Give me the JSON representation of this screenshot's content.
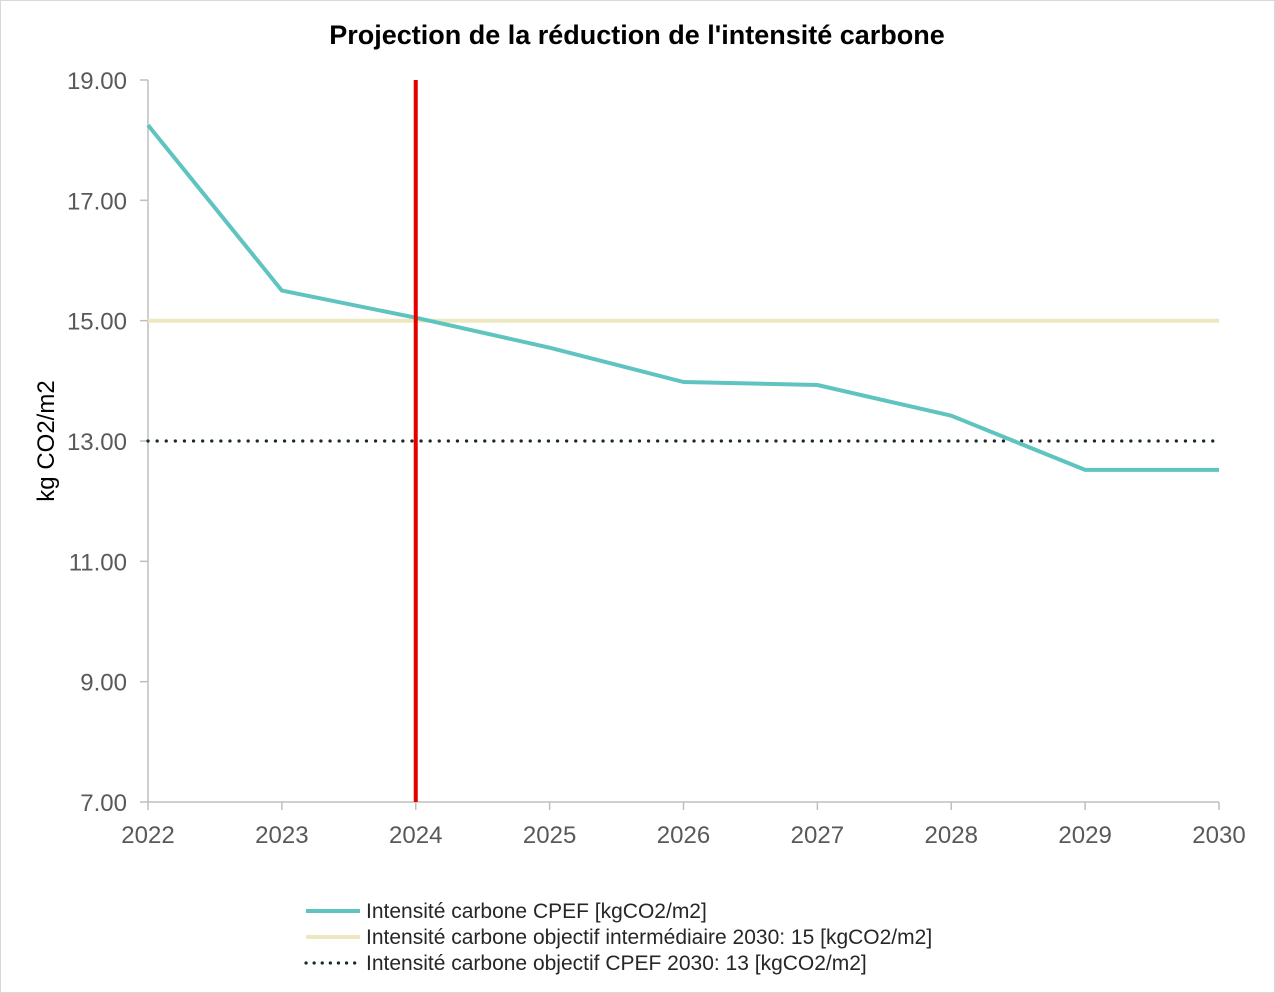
{
  "chart_data": {
    "type": "line",
    "title": "Projection de la réduction de l'intensité carbone",
    "ylabel": "kg CO2/m2",
    "xlabel": "",
    "x": [
      "2022",
      "2023",
      "2024",
      "2025",
      "2026",
      "2027",
      "2028",
      "2029",
      "2030"
    ],
    "ylim": [
      7,
      19
    ],
    "yticks": [
      "7.00",
      "9.00",
      "11.00",
      "13.00",
      "15.00",
      "17.00",
      "19.00"
    ],
    "grid": false,
    "legend_position": "bottom",
    "series": [
      {
        "name": "Intensité carbone CPEF [kgCO2/m2]",
        "color": "#5fc4c0",
        "style": "solid",
        "values": [
          18.25,
          15.5,
          15.05,
          14.55,
          13.98,
          13.93,
          13.42,
          12.52,
          12.52
        ]
      },
      {
        "name": "Intensité carbone objectif intermédiaire 2030: 15 [kgCO2/m2]",
        "color": "#ede8c0",
        "style": "solid",
        "values": [
          15,
          15,
          15,
          15,
          15,
          15,
          15,
          15,
          15
        ]
      },
      {
        "name": "Intensité carbone objectif CPEF 2030: 13 [kgCO2/m2]",
        "color": "#1a2b24",
        "style": "dotted",
        "values": [
          13,
          13,
          13,
          13,
          13,
          13,
          13,
          13,
          13
        ]
      }
    ],
    "annotations": [
      {
        "type": "vertical-line",
        "x": "2024",
        "color": "#e60000"
      }
    ]
  }
}
